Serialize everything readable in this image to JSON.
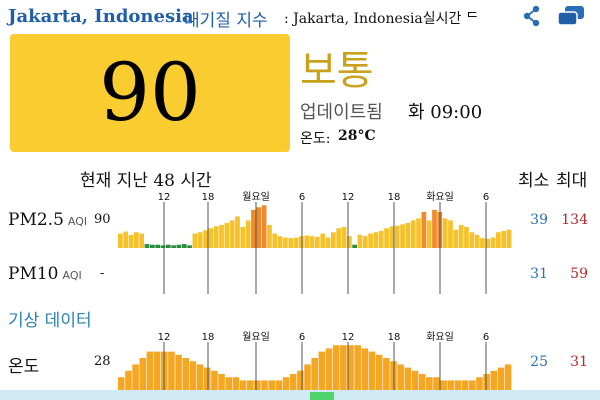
{
  "header": {
    "city": "Jakarta, Indonesia",
    "suffix": "대기질 지수",
    "rest": ": Jakarta, Indonesia실시간 ᄃ"
  },
  "icons": {
    "share": "share-icon",
    "chat": "chat-icon"
  },
  "current": {
    "aqi": "90",
    "status": "보통",
    "update_label": "업데이트됨",
    "update_time": "화 09:00",
    "temp_label": "온도:",
    "temp_value": "28°C",
    "aqi_color": "#f9cc2f",
    "status_color": "#c9a11a"
  },
  "history": {
    "header": "현재 지난 48 시간",
    "min_header": "최소",
    "max_header": "최대",
    "tick_labels": [
      "12",
      "18",
      "월요일",
      "6",
      "12",
      "18",
      "화요일",
      "6"
    ],
    "rows": [
      {
        "key": "pm25",
        "label": "PM2.5",
        "sub": "AQI",
        "current": "90",
        "min": "39",
        "max": "134",
        "values": [
          22,
          25,
          20,
          24,
          22,
          6,
          5,
          5,
          4,
          5,
          4,
          5,
          6,
          4,
          22,
          24,
          27,
          30,
          33,
          35,
          38,
          42,
          48,
          32,
          42,
          58,
          62,
          65,
          35,
          22,
          18,
          16,
          15,
          16,
          18,
          19,
          18,
          17,
          22,
          16,
          24,
          30,
          32,
          18,
          5,
          20,
          18,
          22,
          24,
          26,
          30,
          33,
          34,
          36,
          38,
          42,
          45,
          55,
          42,
          58,
          55,
          45,
          42,
          28,
          35,
          32,
          24,
          20,
          15,
          14,
          16,
          24,
          26,
          28
        ]
      },
      {
        "key": "pm10",
        "label": "PM10",
        "sub": "AQI",
        "current": "-",
        "min": "31",
        "max": "59",
        "values": []
      },
      {
        "key": "temp",
        "label": "온도",
        "sub": "",
        "current": "28",
        "min": "25",
        "max": "31",
        "values": [
          26,
          27,
          28,
          29,
          30,
          30,
          30,
          30,
          29.5,
          29,
          28.5,
          28,
          27.5,
          27,
          26.5,
          26,
          26,
          25.5,
          25.5,
          25.5,
          25.5,
          25.5,
          25.5,
          26,
          26.5,
          27,
          28,
          29,
          30,
          30.5,
          31,
          31,
          31,
          31,
          30.5,
          30,
          29.5,
          29,
          28.5,
          28,
          27.5,
          27,
          26.5,
          26,
          26,
          25.5,
          25.5,
          25.5,
          25.5,
          25.5,
          26,
          26.5,
          27,
          27.5,
          28
        ]
      }
    ]
  },
  "weather_header": "기상 데이터",
  "colors": {
    "good": "#2a8c3c",
    "moderate": "#f5c22b",
    "unhealthy_sensitive": "#f08a2b",
    "temp_bar": "#f5a623",
    "min_text": "#2a6fb5",
    "max_text": "#b52a2a"
  }
}
